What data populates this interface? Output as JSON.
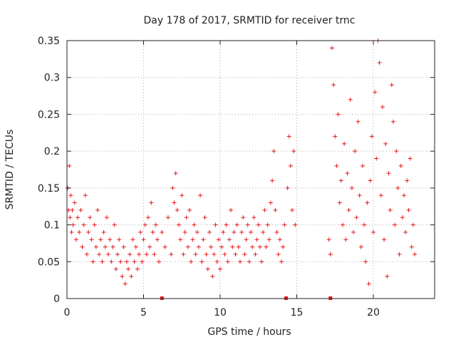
{
  "chart_data": {
    "type": "scatter",
    "title": "Day 178 of 2017, SRMTID for receiver trnc",
    "xlabel": "GPS time / hours",
    "ylabel": "SRMTID / TECUs",
    "xlim": [
      0,
      24
    ],
    "ylim": [
      0,
      0.35
    ],
    "x_ticks": [
      0,
      5,
      10,
      15,
      20
    ],
    "y_ticks": [
      0,
      0.05,
      0.1,
      0.15,
      0.2,
      0.25,
      0.3,
      0.35
    ],
    "x_tick_labels": [
      "0",
      "5",
      "10",
      "15",
      "20"
    ],
    "y_tick_labels": [
      "0",
      "0.05",
      "0.1",
      "0.15",
      "0.2",
      "0.25",
      "0.3",
      "0.35"
    ],
    "grid": true,
    "marker": "+",
    "color": "#e8161a",
    "gap_markers_x": [
      6.2,
      14.3,
      17.2
    ],
    "series": [
      {
        "name": "",
        "points": [
          [
            0.05,
            0.15
          ],
          [
            0.1,
            0.12
          ],
          [
            0.15,
            0.18
          ],
          [
            0.2,
            0.11
          ],
          [
            0.25,
            0.14
          ],
          [
            0.3,
            0.09
          ],
          [
            0.35,
            0.12
          ],
          [
            0.4,
            0.1
          ],
          [
            0.5,
            0.13
          ],
          [
            0.6,
            0.08
          ],
          [
            0.7,
            0.11
          ],
          [
            0.8,
            0.09
          ],
          [
            0.9,
            0.12
          ],
          [
            1.0,
            0.07
          ],
          [
            1.1,
            0.1
          ],
          [
            1.2,
            0.14
          ],
          [
            1.3,
            0.06
          ],
          [
            1.4,
            0.09
          ],
          [
            1.5,
            0.11
          ],
          [
            1.6,
            0.08
          ],
          [
            1.7,
            0.05
          ],
          [
            1.8,
            0.1
          ],
          [
            1.9,
            0.07
          ],
          [
            2.0,
            0.12
          ],
          [
            2.1,
            0.06
          ],
          [
            2.2,
            0.08
          ],
          [
            2.3,
            0.05
          ],
          [
            2.4,
            0.09
          ],
          [
            2.5,
            0.07
          ],
          [
            2.6,
            0.11
          ],
          [
            2.7,
            0.06
          ],
          [
            2.8,
            0.08
          ],
          [
            2.9,
            0.05
          ],
          [
            3.0,
            0.07
          ],
          [
            3.1,
            0.1
          ],
          [
            3.2,
            0.04
          ],
          [
            3.3,
            0.06
          ],
          [
            3.4,
            0.08
          ],
          [
            3.5,
            0.05
          ],
          [
            3.6,
            0.03
          ],
          [
            3.7,
            0.07
          ],
          [
            3.8,
            0.02
          ],
          [
            3.9,
            0.05
          ],
          [
            4.0,
            0.04
          ],
          [
            4.1,
            0.06
          ],
          [
            4.2,
            0.03
          ],
          [
            4.3,
            0.08
          ],
          [
            4.4,
            0.05
          ],
          [
            4.5,
            0.07
          ],
          [
            4.6,
            0.04
          ],
          [
            4.7,
            0.06
          ],
          [
            4.8,
            0.09
          ],
          [
            4.9,
            0.05
          ],
          [
            5.0,
            0.08
          ],
          [
            5.1,
            0.1
          ],
          [
            5.2,
            0.06
          ],
          [
            5.3,
            0.11
          ],
          [
            5.4,
            0.07
          ],
          [
            5.5,
            0.13
          ],
          [
            5.6,
            0.09
          ],
          [
            5.7,
            0.06
          ],
          [
            5.8,
            0.1
          ],
          [
            5.9,
            0.08
          ],
          [
            6.0,
            0.05
          ],
          [
            6.2,
            0.09
          ],
          [
            6.4,
            0.07
          ],
          [
            6.6,
            0.11
          ],
          [
            6.8,
            0.06
          ],
          [
            6.9,
            0.15
          ],
          [
            7.0,
            0.13
          ],
          [
            7.1,
            0.17
          ],
          [
            7.2,
            0.12
          ],
          [
            7.3,
            0.1
          ],
          [
            7.4,
            0.08
          ],
          [
            7.5,
            0.14
          ],
          [
            7.6,
            0.06
          ],
          [
            7.7,
            0.09
          ],
          [
            7.8,
            0.11
          ],
          [
            7.9,
            0.07
          ],
          [
            8.0,
            0.12
          ],
          [
            8.1,
            0.05
          ],
          [
            8.2,
            0.08
          ],
          [
            8.3,
            0.1
          ],
          [
            8.4,
            0.06
          ],
          [
            8.5,
            0.09
          ],
          [
            8.6,
            0.07
          ],
          [
            8.7,
            0.14
          ],
          [
            8.8,
            0.05
          ],
          [
            8.9,
            0.08
          ],
          [
            9.0,
            0.11
          ],
          [
            9.1,
            0.06
          ],
          [
            9.2,
            0.04
          ],
          [
            9.3,
            0.09
          ],
          [
            9.4,
            0.07
          ],
          [
            9.5,
            0.03
          ],
          [
            9.6,
            0.06
          ],
          [
            9.7,
            0.1
          ],
          [
            9.8,
            0.05
          ],
          [
            9.9,
            0.08
          ],
          [
            10.0,
            0.04
          ],
          [
            10.1,
            0.07
          ],
          [
            10.2,
            0.09
          ],
          [
            10.3,
            0.06
          ],
          [
            10.4,
            0.1
          ],
          [
            10.5,
            0.05
          ],
          [
            10.6,
            0.08
          ],
          [
            10.7,
            0.12
          ],
          [
            10.8,
            0.07
          ],
          [
            10.9,
            0.09
          ],
          [
            11.0,
            0.06
          ],
          [
            11.1,
            0.1
          ],
          [
            11.2,
            0.07
          ],
          [
            11.3,
            0.05
          ],
          [
            11.4,
            0.09
          ],
          [
            11.5,
            0.11
          ],
          [
            11.6,
            0.06
          ],
          [
            11.7,
            0.08
          ],
          [
            11.8,
            0.1
          ],
          [
            11.9,
            0.05
          ],
          [
            12.0,
            0.09
          ],
          [
            12.1,
            0.07
          ],
          [
            12.2,
            0.11
          ],
          [
            12.3,
            0.06
          ],
          [
            12.4,
            0.08
          ],
          [
            12.5,
            0.1
          ],
          [
            12.6,
            0.07
          ],
          [
            12.7,
            0.05
          ],
          [
            12.8,
            0.09
          ],
          [
            12.9,
            0.12
          ],
          [
            13.0,
            0.07
          ],
          [
            13.1,
            0.1
          ],
          [
            13.2,
            0.08
          ],
          [
            13.3,
            0.13
          ],
          [
            13.4,
            0.16
          ],
          [
            13.5,
            0.2
          ],
          [
            13.6,
            0.12
          ],
          [
            13.7,
            0.09
          ],
          [
            13.8,
            0.06
          ],
          [
            13.9,
            0.08
          ],
          [
            14.0,
            0.05
          ],
          [
            14.1,
            0.07
          ],
          [
            14.2,
            0.1
          ],
          [
            14.4,
            0.15
          ],
          [
            14.5,
            0.22
          ],
          [
            14.6,
            0.18
          ],
          [
            14.7,
            0.12
          ],
          [
            14.8,
            0.2
          ],
          [
            14.9,
            0.1
          ],
          [
            17.1,
            0.08
          ],
          [
            17.2,
            0.06
          ],
          [
            17.3,
            0.34
          ],
          [
            17.4,
            0.29
          ],
          [
            17.5,
            0.22
          ],
          [
            17.6,
            0.18
          ],
          [
            17.7,
            0.25
          ],
          [
            17.8,
            0.13
          ],
          [
            17.9,
            0.16
          ],
          [
            18.0,
            0.1
          ],
          [
            18.1,
            0.21
          ],
          [
            18.2,
            0.08
          ],
          [
            18.3,
            0.17
          ],
          [
            18.4,
            0.12
          ],
          [
            18.5,
            0.27
          ],
          [
            18.6,
            0.15
          ],
          [
            18.7,
            0.09
          ],
          [
            18.8,
            0.2
          ],
          [
            18.9,
            0.11
          ],
          [
            19.0,
            0.24
          ],
          [
            19.1,
            0.14
          ],
          [
            19.2,
            0.07
          ],
          [
            19.3,
            0.18
          ],
          [
            19.4,
            0.1
          ],
          [
            19.5,
            0.05
          ],
          [
            19.6,
            0.13
          ],
          [
            19.7,
            0.02
          ],
          [
            19.8,
            0.16
          ],
          [
            19.9,
            0.22
          ],
          [
            20.0,
            0.09
          ],
          [
            20.1,
            0.28
          ],
          [
            20.2,
            0.19
          ],
          [
            20.3,
            0.35
          ],
          [
            20.4,
            0.32
          ],
          [
            20.5,
            0.14
          ],
          [
            20.6,
            0.26
          ],
          [
            20.7,
            0.08
          ],
          [
            20.8,
            0.21
          ],
          [
            20.9,
            0.03
          ],
          [
            21.0,
            0.17
          ],
          [
            21.1,
            0.12
          ],
          [
            21.2,
            0.29
          ],
          [
            21.3,
            0.24
          ],
          [
            21.4,
            0.1
          ],
          [
            21.5,
            0.2
          ],
          [
            21.6,
            0.15
          ],
          [
            21.7,
            0.06
          ],
          [
            21.8,
            0.18
          ],
          [
            21.9,
            0.11
          ],
          [
            22.0,
            0.14
          ],
          [
            22.1,
            0.09
          ],
          [
            22.2,
            0.16
          ],
          [
            22.3,
            0.12
          ],
          [
            22.4,
            0.19
          ],
          [
            22.5,
            0.07
          ],
          [
            22.6,
            0.1
          ],
          [
            22.7,
            0.06
          ]
        ]
      }
    ]
  }
}
